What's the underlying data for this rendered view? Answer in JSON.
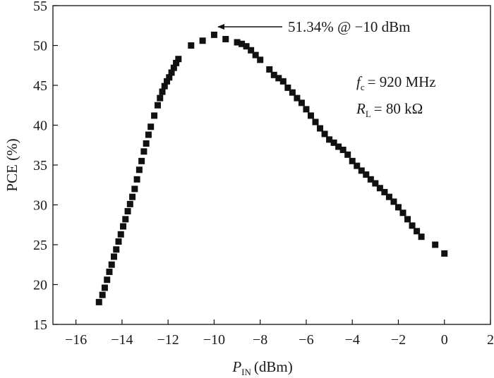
{
  "chart_data": {
    "type": "scatter",
    "xlabel": {
      "main": "P",
      "sub": "IN",
      "unit": "(dBm)"
    },
    "ylabel": "PCE (%)",
    "xlim": [
      -17,
      2
    ],
    "ylim": [
      15,
      55
    ],
    "xticks": [
      -16,
      -14,
      -12,
      -10,
      -8,
      -6,
      -4,
      -2,
      0,
      2
    ],
    "xtick_labels": [
      "−16",
      "−14",
      "−12",
      "−10",
      "−8",
      "−6",
      "−4",
      "−2",
      "0",
      "2"
    ],
    "yticks": [
      15,
      20,
      25,
      30,
      35,
      40,
      45,
      50,
      55
    ],
    "ytick_labels": [
      "15",
      "20",
      "25",
      "30",
      "35",
      "40",
      "45",
      "50",
      "55"
    ],
    "grid": false,
    "marker": "square",
    "marker_color": "#111111",
    "series": [
      {
        "x": [
          -15.0,
          -14.85,
          -14.75,
          -14.65,
          -14.55,
          -14.45,
          -14.35,
          -14.25,
          -14.15,
          -14.05,
          -13.95,
          -13.85,
          -13.75,
          -13.65,
          -13.55,
          -13.45,
          -13.35,
          -13.25,
          -13.15,
          -13.05,
          -12.95,
          -12.85,
          -12.75,
          -12.6,
          -12.45,
          -12.35,
          -12.25,
          -12.15,
          -12.05,
          -11.95,
          -11.85,
          -11.75,
          -11.65,
          -11.55,
          -11.0,
          -10.5,
          -10.0,
          -9.5,
          -9.0,
          -8.8,
          -8.6,
          -8.4,
          -8.2,
          -8.0,
          -7.6,
          -7.4,
          -7.2,
          -7.0,
          -6.8,
          -6.6,
          -6.4,
          -6.2,
          -6.0,
          -5.8,
          -5.6,
          -5.4,
          -5.2,
          -5.0,
          -4.8,
          -4.6,
          -4.4,
          -4.2,
          -4.0,
          -3.8,
          -3.6,
          -3.4,
          -3.2,
          -3.0,
          -2.8,
          -2.6,
          -2.4,
          -2.2,
          -2.0,
          -1.8,
          -1.6,
          -1.4,
          -1.2,
          -1.0,
          -0.4,
          0.0
        ],
        "y": [
          17.8,
          18.7,
          19.6,
          20.6,
          21.6,
          22.5,
          23.5,
          24.4,
          25.4,
          26.3,
          27.3,
          28.2,
          29.2,
          30.1,
          31.0,
          32.0,
          33.2,
          34.4,
          35.5,
          36.7,
          37.7,
          38.8,
          39.8,
          41.2,
          42.5,
          43.4,
          44.2,
          44.9,
          45.5,
          46.0,
          46.6,
          47.2,
          47.8,
          48.3,
          50.0,
          50.6,
          51.34,
          50.8,
          50.4,
          50.2,
          49.9,
          49.4,
          48.8,
          48.2,
          47.0,
          46.3,
          45.9,
          45.5,
          44.7,
          44.1,
          43.4,
          42.8,
          42.0,
          41.2,
          40.4,
          39.6,
          38.9,
          38.2,
          37.8,
          37.3,
          36.9,
          36.3,
          35.5,
          34.9,
          34.3,
          33.8,
          33.2,
          32.7,
          32.1,
          31.6,
          31.0,
          30.4,
          29.7,
          29.0,
          28.2,
          27.4,
          26.7,
          26.0,
          25.0,
          23.9
        ]
      }
    ],
    "annotations": {
      "peak": "51.34% @ −10 dBm",
      "fc_symbol": "f",
      "fc_sub": "c",
      "fc_value": "= 920 MHz",
      "rl_symbol": "R",
      "rl_sub": "L",
      "rl_value": "= 80 kΩ"
    }
  }
}
